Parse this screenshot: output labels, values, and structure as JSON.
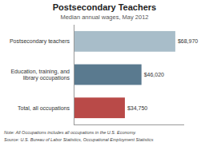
{
  "chart_data": {
    "type": "bar",
    "orientation": "horizontal",
    "title": "Postsecondary Teachers",
    "subtitle": "Median annual wages, May 2012",
    "categories": [
      "Postsecondary teachers",
      "Education, training, and\nlibrary occupations",
      "Total, all occupations"
    ],
    "values": [
      68970,
      46020,
      34750
    ],
    "value_labels": [
      "$68,970",
      "$46,020",
      "$34,750"
    ],
    "colors": [
      "#a8bdc9",
      "#5a7a8f",
      "#b94a48"
    ],
    "xlim": [
      0,
      75000
    ],
    "data_labels": true,
    "tick_labels": "y",
    "grid": false,
    "annotations": [
      "Note: All Occupations includes all occupations in the U.S. Economy.",
      "Source: U.S. Bureau of Labor Statistics, Occupational Employment Statistics"
    ]
  }
}
